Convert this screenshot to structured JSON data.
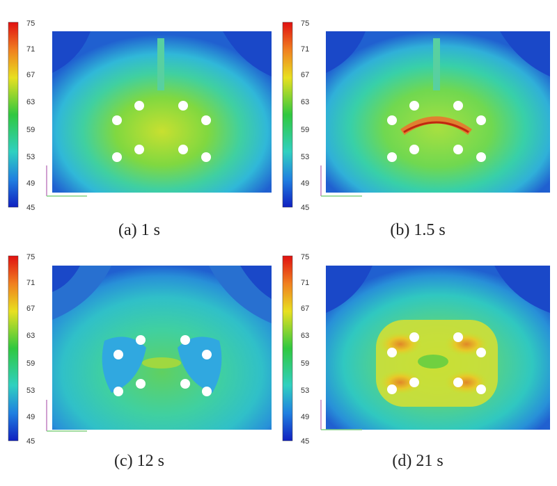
{
  "colorbar": {
    "ticks": [
      "75",
      "71",
      "67",
      "63",
      "59",
      "53",
      "49",
      "45"
    ]
  },
  "panels": [
    {
      "id": "a",
      "caption": "(a) 1 s"
    },
    {
      "id": "b",
      "caption": "(b) 1.5 s"
    },
    {
      "id": "c",
      "caption": "(c) 12 s"
    },
    {
      "id": "d",
      "caption": "(d) 21 s"
    }
  ],
  "colors": {
    "cold": "#1a47c8",
    "mid": "#32c8c8",
    "warm": "#7ed957",
    "hot": "#e8d020",
    "max": "#e02010"
  }
}
